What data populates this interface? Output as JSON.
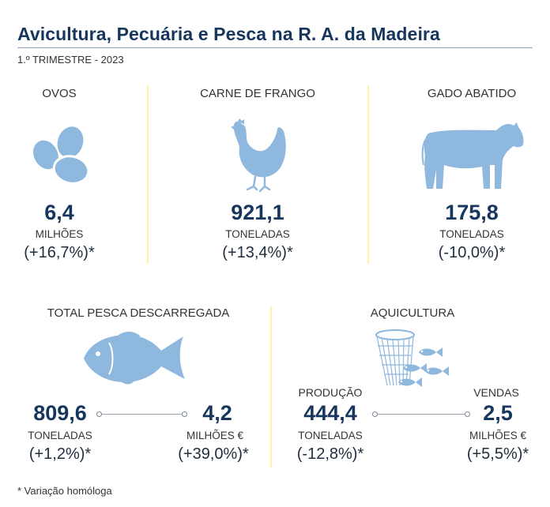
{
  "header": {
    "title": "Avicultura, Pecuária e Pesca na R. A. da Madeira",
    "subtitle": "1.º TRIMESTRE - 2023"
  },
  "ovos": {
    "label": "OVOS",
    "value": "6,4",
    "unit": "MILHÕES",
    "variation": "(+16,7%)*",
    "icon": "eggs-icon"
  },
  "frango": {
    "label": "CARNE DE FRANGO",
    "value": "921,1",
    "unit": "TONELADAS",
    "variation": "(+13,4%)*",
    "icon": "chicken-icon"
  },
  "gado": {
    "label": "GADO ABATIDO",
    "value": "175,8",
    "unit": "TONELADAS",
    "variation": "(-10,0%)*",
    "icon": "cow-icon"
  },
  "pesca": {
    "label": "TOTAL PESCA DESCARREGADA",
    "icon": "fish-icon",
    "left": {
      "value": "809,6",
      "unit": "TONELADAS",
      "variation": "(+1,2%)*"
    },
    "right": {
      "value": "4,2",
      "unit": "MILHÕES €",
      "variation": "(+39,0%)*"
    }
  },
  "aquicultura": {
    "label": "AQUICULTURA",
    "icon": "fish-farm-icon",
    "left": {
      "caption": "PRODUÇÃO",
      "value": "444,4",
      "unit": "TONELADAS",
      "variation": "(-12,8%)*"
    },
    "right": {
      "caption": "VENDAS",
      "value": "2,5",
      "unit": "MILHÕES €",
      "variation": "(+5,5%)*"
    }
  },
  "footer": {
    "note": "* Variação homóloga"
  },
  "colors": {
    "accent": "#17365d",
    "icon": "#8fb8df",
    "divider": "#fff1a8"
  }
}
